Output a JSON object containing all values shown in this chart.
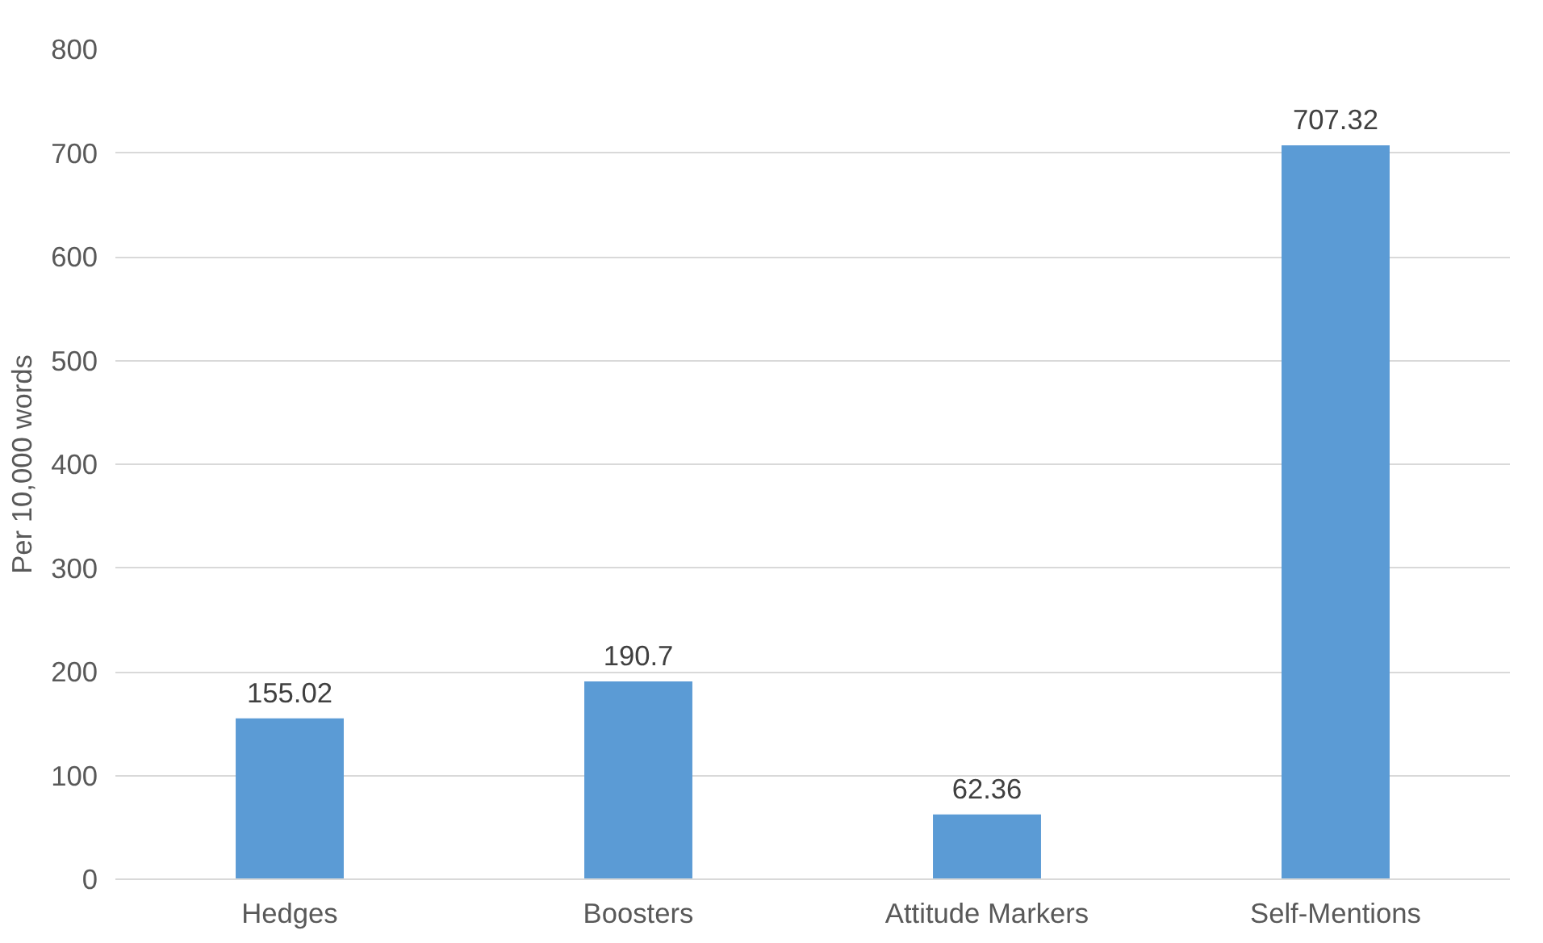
{
  "chart_data": {
    "type": "bar",
    "ylabel": "Per 10,000 words",
    "categories": [
      "Hedges",
      "Boosters",
      "Attitude Markers",
      "Self-Mentions"
    ],
    "values": [
      155.02,
      190.7,
      62.36,
      707.32
    ],
    "color": "#5b9bd5",
    "ylim": [
      0,
      800
    ],
    "yticks": [
      0,
      100,
      200,
      300,
      400,
      500,
      600,
      700,
      800
    ],
    "grid": "y",
    "data_labels": true
  }
}
